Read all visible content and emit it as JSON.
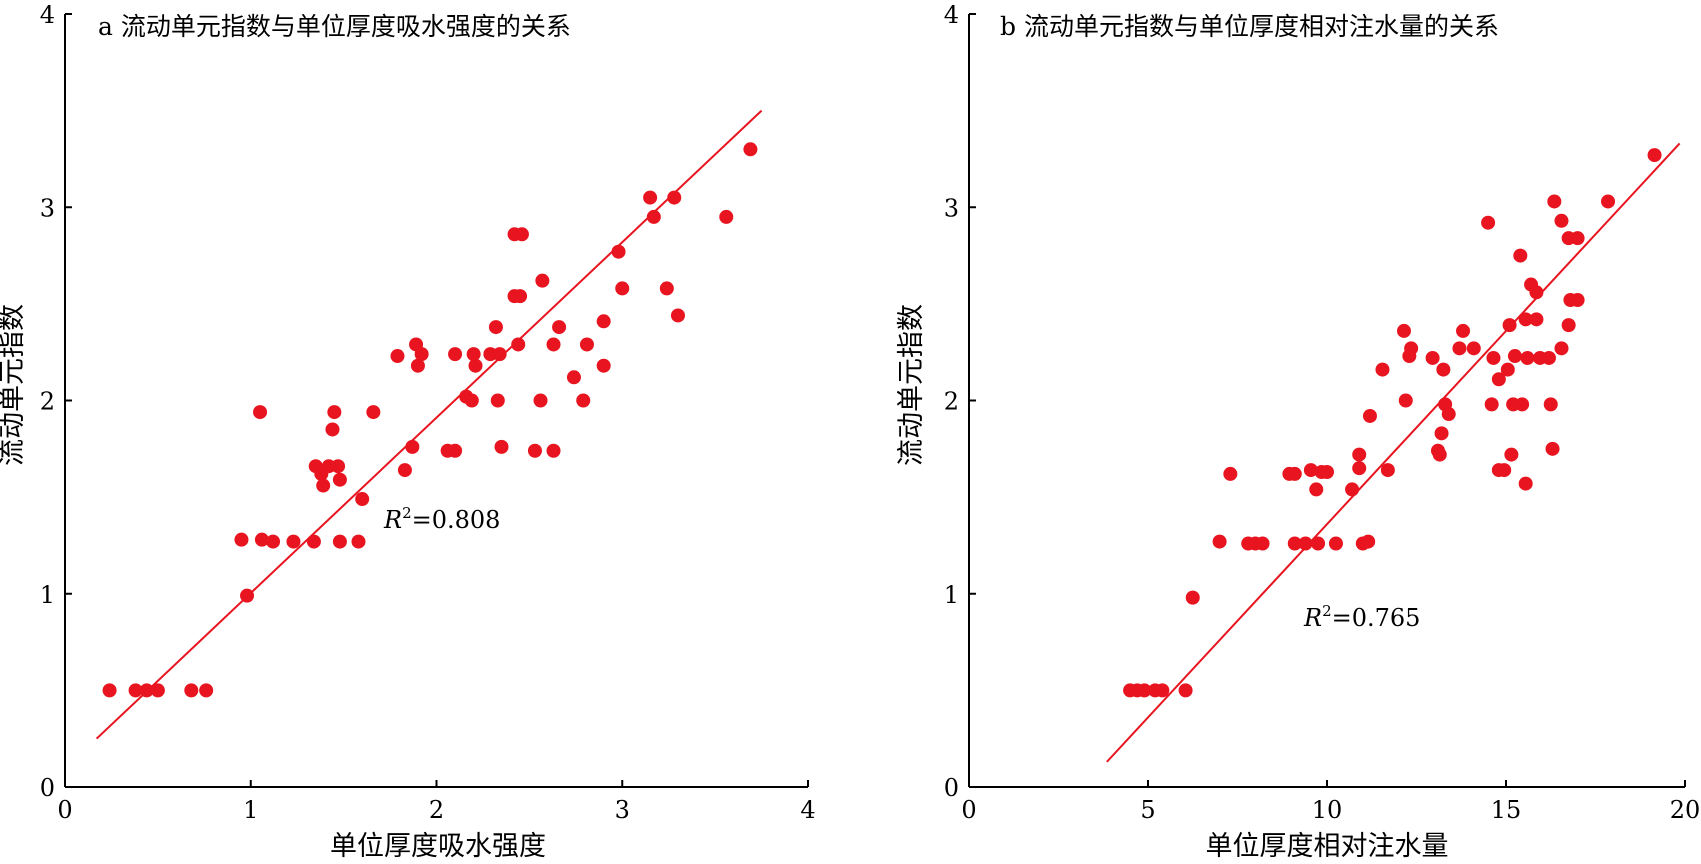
{
  "colors": {
    "points": "#e8141f",
    "fit_line": "#e8141f",
    "axis": "#000000"
  },
  "chart_data": [
    {
      "type": "scatter",
      "title": "a 流动单元指数与单位厚度吸水强度的关系",
      "xlabel": "单位厚度吸水强度",
      "ylabel": "流动单元指数",
      "xlim": [
        0,
        4
      ],
      "ylim": [
        0,
        4
      ],
      "xticks": [
        0,
        1,
        2,
        3,
        4
      ],
      "yticks": [
        0,
        1,
        2,
        3,
        4
      ],
      "grid": false,
      "annotation": {
        "var": "R",
        "sup": "2",
        "value": "=0.808"
      },
      "fit_line": [
        [
          0.17,
          0.25
        ],
        [
          3.75,
          3.5
        ]
      ],
      "points": [
        [
          0.24,
          0.5
        ],
        [
          0.38,
          0.5
        ],
        [
          0.44,
          0.5
        ],
        [
          0.5,
          0.5
        ],
        [
          0.68,
          0.5
        ],
        [
          0.76,
          0.5
        ],
        [
          0.98,
          0.99
        ],
        [
          0.95,
          1.28
        ],
        [
          1.06,
          1.28
        ],
        [
          1.12,
          1.27
        ],
        [
          1.23,
          1.27
        ],
        [
          1.34,
          1.27
        ],
        [
          1.48,
          1.27
        ],
        [
          1.58,
          1.27
        ],
        [
          1.05,
          1.94
        ],
        [
          1.35,
          1.66
        ],
        [
          1.38,
          1.62
        ],
        [
          1.42,
          1.66
        ],
        [
          1.47,
          1.66
        ],
        [
          1.39,
          1.56
        ],
        [
          1.48,
          1.59
        ],
        [
          1.44,
          1.85
        ],
        [
          1.45,
          1.94
        ],
        [
          1.6,
          1.49
        ],
        [
          1.66,
          1.94
        ],
        [
          1.79,
          2.23
        ],
        [
          1.83,
          1.64
        ],
        [
          1.87,
          1.76
        ],
        [
          1.89,
          2.29
        ],
        [
          1.9,
          2.18
        ],
        [
          1.92,
          2.24
        ],
        [
          2.06,
          1.74
        ],
        [
          2.1,
          1.74
        ],
        [
          2.1,
          2.24
        ],
        [
          2.16,
          2.02
        ],
        [
          2.19,
          2.0
        ],
        [
          2.2,
          2.24
        ],
        [
          2.21,
          2.18
        ],
        [
          2.29,
          2.24
        ],
        [
          2.32,
          2.38
        ],
        [
          2.33,
          2.0
        ],
        [
          2.34,
          2.24
        ],
        [
          2.35,
          1.76
        ],
        [
          2.42,
          2.54
        ],
        [
          2.42,
          2.86
        ],
        [
          2.44,
          2.29
        ],
        [
          2.45,
          2.54
        ],
        [
          2.46,
          2.86
        ],
        [
          2.53,
          1.74
        ],
        [
          2.56,
          2.0
        ],
        [
          2.57,
          2.62
        ],
        [
          2.63,
          2.29
        ],
        [
          2.63,
          1.74
        ],
        [
          2.66,
          2.38
        ],
        [
          2.74,
          2.12
        ],
        [
          2.79,
          2.0
        ],
        [
          2.81,
          2.29
        ],
        [
          2.9,
          2.41
        ],
        [
          2.9,
          2.18
        ],
        [
          2.98,
          2.77
        ],
        [
          3.0,
          2.58
        ],
        [
          3.15,
          3.05
        ],
        [
          3.17,
          2.95
        ],
        [
          3.24,
          2.58
        ],
        [
          3.28,
          3.05
        ],
        [
          3.3,
          2.44
        ],
        [
          3.56,
          2.95
        ],
        [
          3.69,
          3.3
        ]
      ]
    },
    {
      "type": "scatter",
      "title": "b 流动单元指数与单位厚度相对注水量的关系",
      "xlabel": "单位厚度相对注水量",
      "ylabel": "流动单元指数",
      "xlim": [
        0,
        20
      ],
      "ylim": [
        0,
        4
      ],
      "xticks": [
        0,
        5,
        10,
        15,
        20
      ],
      "yticks": [
        0,
        1,
        2,
        3,
        4
      ],
      "grid": false,
      "annotation": {
        "var": "R",
        "sup": "2",
        "value": "=0.765"
      },
      "fit_line": [
        [
          3.85,
          0.13
        ],
        [
          19.85,
          3.33
        ]
      ],
      "points": [
        [
          4.5,
          0.5
        ],
        [
          4.7,
          0.5
        ],
        [
          4.9,
          0.5
        ],
        [
          5.2,
          0.5
        ],
        [
          5.4,
          0.5
        ],
        [
          6.05,
          0.5
        ],
        [
          6.25,
          0.98
        ],
        [
          7.0,
          1.27
        ],
        [
          7.3,
          1.62
        ],
        [
          7.8,
          1.26
        ],
        [
          8.0,
          1.26
        ],
        [
          8.2,
          1.26
        ],
        [
          8.95,
          1.62
        ],
        [
          9.1,
          1.62
        ],
        [
          9.1,
          1.26
        ],
        [
          9.4,
          1.26
        ],
        [
          9.55,
          1.64
        ],
        [
          9.7,
          1.54
        ],
        [
          9.75,
          1.26
        ],
        [
          9.85,
          1.63
        ],
        [
          10.0,
          1.63
        ],
        [
          10.25,
          1.26
        ],
        [
          10.7,
          1.54
        ],
        [
          10.9,
          1.72
        ],
        [
          10.9,
          1.65
        ],
        [
          11.0,
          1.26
        ],
        [
          11.15,
          1.27
        ],
        [
          11.2,
          1.92
        ],
        [
          11.55,
          2.16
        ],
        [
          11.7,
          1.64
        ],
        [
          12.15,
          2.36
        ],
        [
          12.2,
          2.0
        ],
        [
          12.3,
          2.23
        ],
        [
          12.35,
          2.27
        ],
        [
          12.95,
          2.22
        ],
        [
          13.1,
          1.74
        ],
        [
          13.15,
          1.72
        ],
        [
          13.2,
          1.83
        ],
        [
          13.25,
          2.16
        ],
        [
          13.3,
          1.98
        ],
        [
          13.4,
          1.93
        ],
        [
          13.7,
          2.27
        ],
        [
          13.8,
          2.36
        ],
        [
          14.1,
          2.27
        ],
        [
          14.5,
          2.92
        ],
        [
          14.6,
          1.98
        ],
        [
          14.65,
          2.22
        ],
        [
          14.8,
          2.11
        ],
        [
          14.8,
          1.64
        ],
        [
          14.95,
          1.64
        ],
        [
          15.05,
          2.16
        ],
        [
          15.1,
          2.39
        ],
        [
          15.15,
          1.72
        ],
        [
          15.2,
          1.98
        ],
        [
          15.25,
          2.23
        ],
        [
          15.4,
          2.75
        ],
        [
          15.45,
          1.98
        ],
        [
          15.55,
          2.42
        ],
        [
          15.55,
          1.57
        ],
        [
          15.6,
          2.22
        ],
        [
          15.7,
          2.6
        ],
        [
          15.85,
          2.56
        ],
        [
          15.85,
          2.42
        ],
        [
          15.95,
          2.22
        ],
        [
          16.2,
          2.22
        ],
        [
          16.25,
          1.98
        ],
        [
          16.3,
          1.75
        ],
        [
          16.35,
          3.03
        ],
        [
          16.55,
          2.93
        ],
        [
          16.55,
          2.27
        ],
        [
          16.75,
          2.84
        ],
        [
          16.75,
          2.39
        ],
        [
          16.8,
          2.52
        ],
        [
          17.0,
          2.84
        ],
        [
          17.0,
          2.52
        ],
        [
          17.85,
          3.03
        ],
        [
          19.15,
          3.27
        ]
      ]
    }
  ]
}
